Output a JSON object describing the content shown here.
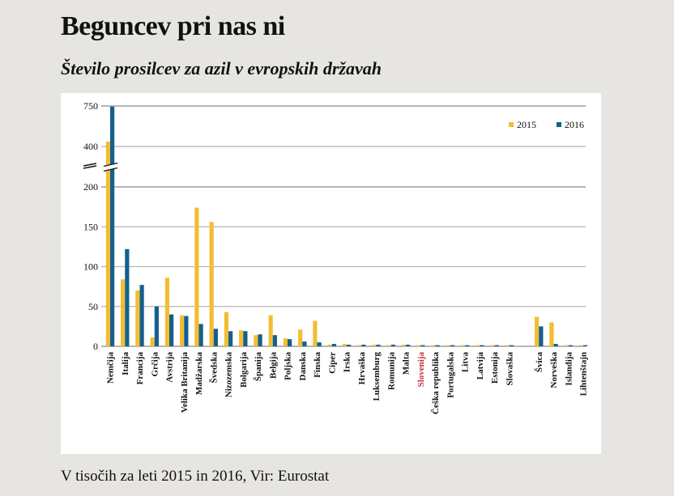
{
  "header": {
    "title": "Beguncev pri nas ni",
    "subtitle": "Število prosilcev za azil v evropskih državah"
  },
  "footer": {
    "note": "V tisočih za leti 2015 in 2016, Vir: Eurostat"
  },
  "colors": {
    "s2015": "#f2bd32",
    "s2016": "#14608f",
    "highlight": "#c8323c",
    "grid": "#b5b5b5"
  },
  "chart_data": {
    "type": "bar",
    "title": "Število prosilcev za azil v evropskih državah",
    "xlabel": "",
    "ylabel": "",
    "units": "V tisočih",
    "y_ticks": [
      "0",
      "50",
      "100",
      "150",
      "200",
      "400",
      "750"
    ],
    "y_break": "between 200 and 400",
    "grid": true,
    "legend_position": "top-right",
    "highlight_category": "Slovenija",
    "categories": [
      "Nemčija",
      "Italija",
      "Francija",
      "Grčija",
      "Avstrija",
      "Velika Britanija",
      "Madžarska",
      "Švedska",
      "Nizozemska",
      "Bolgarija",
      "Španija",
      "Belgija",
      "Poljska",
      "Danska",
      "Finska",
      "Ciper",
      "Irska",
      "Hrvaška",
      "Luksemburg",
      "Romunija",
      "Malta",
      "Slovenija",
      "Češka republika",
      "Portugalska",
      "Litva",
      "Latvija",
      "Estonija",
      "Slovaška",
      "Švica",
      "Norveška",
      "Islandija",
      "Lihtenštajn"
    ],
    "gap_before": "Švica",
    "series": [
      {
        "name": "2015",
        "values": [
          442,
          84,
          70,
          11,
          86,
          39,
          174,
          156,
          43,
          20,
          14,
          39,
          10,
          21,
          32,
          2,
          3,
          0.2,
          2,
          1,
          2,
          0.3,
          1,
          1,
          0.3,
          0.3,
          0.2,
          0.3,
          37,
          30,
          0.3,
          0.1
        ]
      },
      {
        "name": "2016",
        "values": [
          745,
          122,
          77,
          50,
          40,
          38,
          28,
          22,
          19,
          19,
          15,
          14,
          9,
          6,
          5,
          3,
          2,
          2,
          2,
          2,
          2,
          1,
          1,
          1,
          0.4,
          0.3,
          0.2,
          0.1,
          25,
          3,
          1,
          0.1
        ]
      }
    ]
  }
}
